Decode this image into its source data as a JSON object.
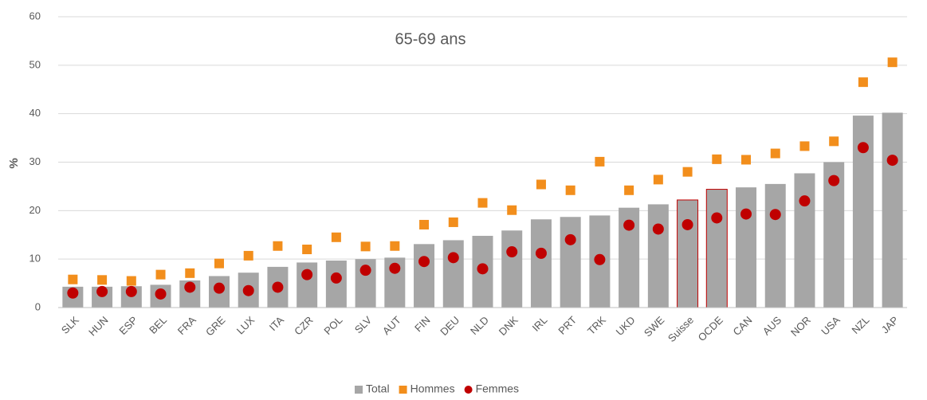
{
  "chart_data": {
    "type": "bar",
    "title": "65-69 ans",
    "y_label": "%",
    "categories": [
      "SLK",
      "HUN",
      "ESP",
      "BEL",
      "FRA",
      "GRE",
      "LUX",
      "ITA",
      "CZR",
      "POL",
      "SLV",
      "AUT",
      "FIN",
      "DEU",
      "NLD",
      "DNK",
      "IRL",
      "PRT",
      "TRK",
      "UKD",
      "SWE",
      "Suisse",
      "OCDE",
      "CAN",
      "AUS",
      "NOR",
      "USA",
      "NZL",
      "JAP"
    ],
    "series": [
      {
        "name": "Total",
        "kind": "bar",
        "color": "#a6a6a6",
        "values": [
          4.3,
          4.3,
          4.4,
          4.7,
          5.6,
          6.5,
          7.2,
          8.4,
          9.3,
          9.7,
          10,
          10.3,
          13.1,
          13.9,
          14.8,
          15.9,
          18.2,
          18.7,
          19,
          20.6,
          21.3,
          22.2,
          24.4,
          24.8,
          25.5,
          27.7,
          30,
          39.6,
          40.2
        ]
      },
      {
        "name": "Hommes",
        "kind": "square",
        "color": "#f28e1c",
        "values": [
          5.8,
          5.7,
          5.5,
          6.8,
          7.1,
          9.1,
          10.7,
          12.7,
          12,
          14.5,
          12.6,
          12.7,
          17.1,
          17.6,
          21.6,
          20.1,
          25.4,
          24.2,
          30.1,
          24.2,
          26.4,
          28,
          30.6,
          30.5,
          31.8,
          33.3,
          34.3,
          46.5,
          50.6
        ]
      },
      {
        "name": "Femmes",
        "kind": "circle",
        "color": "#c00000",
        "values": [
          3,
          3.3,
          3.3,
          2.8,
          4.2,
          4,
          3.5,
          4.2,
          6.8,
          6.1,
          7.7,
          8.1,
          9.5,
          10.3,
          8,
          11.5,
          11.2,
          14,
          9.9,
          17,
          16.2,
          17.1,
          18.5,
          19.3,
          19.2,
          22,
          26.2,
          33,
          30.4
        ]
      }
    ],
    "highlight": [
      "Suisse",
      "OCDE"
    ],
    "highlight_color": "#c00000",
    "ylim": [
      0,
      60
    ],
    "yticks": [
      0,
      10,
      20,
      30,
      40,
      50,
      60
    ],
    "grid": true,
    "legend": "bottom"
  }
}
